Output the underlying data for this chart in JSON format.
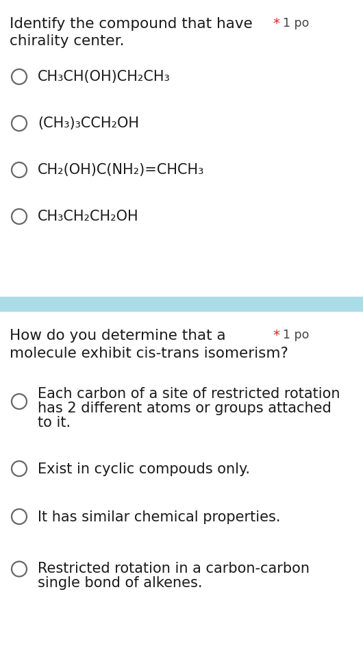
{
  "bg_color": "#ffffff",
  "separator_color": "#aadde8",
  "question1_title_line1": "Identify the compound that have",
  "question1_title_line2": "chirality center.",
  "question1_points": "* 1 po",
  "question1_options": [
    "CH₃CH(OH)CH₂CH₃",
    "(CH₃)₃CCH₂OH",
    "CH₂(OH)C(NH₂)=CHCH₃",
    "CH₃CH₂CH₂OH"
  ],
  "question2_title_line1": "How do you determine that a",
  "question2_title_line2": "molecule exhibit cis-trans isomerism?",
  "question2_points": "* 1 po",
  "question2_options": [
    "Each carbon of a site of restricted rotation\nhas 2 different atoms or groups attached\nto it.",
    "Exist in cyclic compouds only.",
    "It has similar chemical properties.",
    "Restricted rotation in a carbon-carbon\nsingle bond of alkenes."
  ],
  "circle_color": "#666666",
  "text_color": "#1a1a1a",
  "points_star_color": "#dd2222",
  "points_text_color": "#444444",
  "title_fontsize": 15.5,
  "option_fontsize": 15.0,
  "points_fontsize": 12.5
}
